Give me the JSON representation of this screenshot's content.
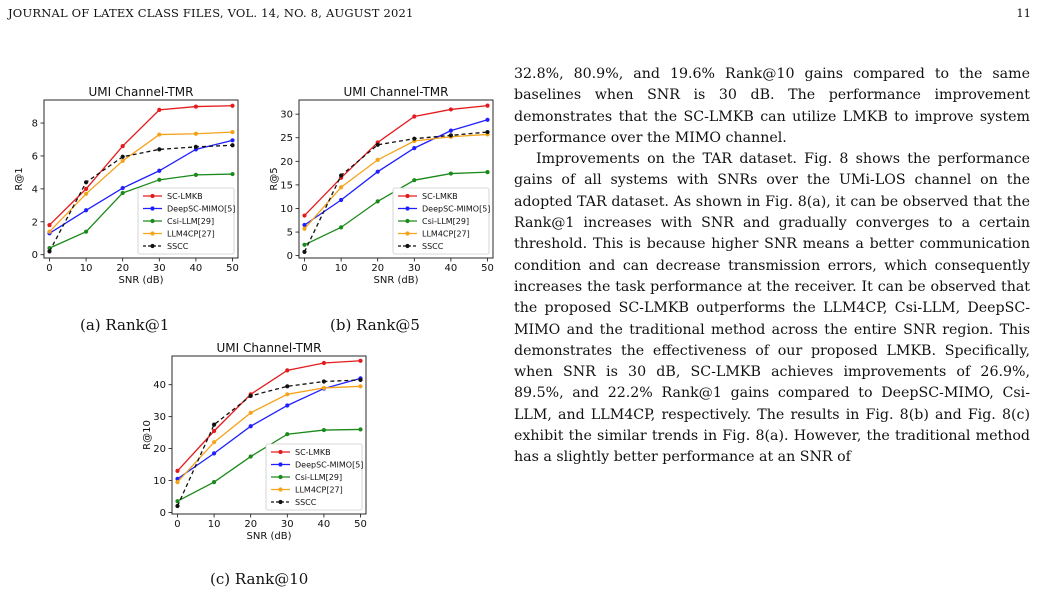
{
  "header": {
    "running_title": "JOURNAL OF LATEX CLASS FILES, VOL. 14, NO. 8, AUGUST 2021",
    "page_number": "11"
  },
  "figures": {
    "a_caption": "(a) Rank@1",
    "b_caption": "(b) Rank@5",
    "c_caption": "(c) Rank@10"
  },
  "legend_names": [
    "SC-LMKB",
    "DeepSC-MIMO[5]",
    "Csi-LLM[29]",
    "LLM4CP[27]",
    "SSCC"
  ],
  "series_colors": [
    "#e41a1c",
    "#1f1fff",
    "#1a8a1a",
    "#f5a31a",
    "#111111"
  ],
  "chart_data": [
    {
      "type": "line",
      "title": "UMI Channel-TMR",
      "xlabel": "SNR (dB)",
      "ylabel": "R@1",
      "x": [
        0,
        10,
        20,
        30,
        40,
        50
      ],
      "xlim": [
        -1.5,
        51.5
      ],
      "ylim": [
        -0.2,
        9.4
      ],
      "yticks": [
        0,
        2,
        4,
        6,
        8
      ],
      "grid": false,
      "legend": "lower-right",
      "series": [
        {
          "name": "SC-LMKB",
          "values": [
            1.8,
            4.0,
            6.6,
            8.8,
            9.0,
            9.05
          ]
        },
        {
          "name": "DeepSC-MIMO[5]",
          "values": [
            1.3,
            2.7,
            4.05,
            5.1,
            6.4,
            6.95
          ]
        },
        {
          "name": "Csi-LLM[29]",
          "values": [
            0.4,
            1.4,
            3.75,
            4.55,
            4.85,
            4.9
          ]
        },
        {
          "name": "LLM4CP[27]",
          "values": [
            1.4,
            3.7,
            5.7,
            7.3,
            7.35,
            7.45
          ]
        },
        {
          "name": "SSCC",
          "values": [
            0.2,
            4.4,
            5.95,
            6.4,
            6.55,
            6.65
          ]
        }
      ]
    },
    {
      "type": "line",
      "title": "UMI Channel-TMR",
      "xlabel": "SNR (dB)",
      "ylabel": "R@5",
      "x": [
        0,
        10,
        20,
        30,
        40,
        50
      ],
      "xlim": [
        -1.5,
        51.5
      ],
      "ylim": [
        -0.5,
        33
      ],
      "yticks": [
        0,
        5,
        10,
        15,
        20,
        25,
        30
      ],
      "grid": false,
      "legend": "lower-right",
      "series": [
        {
          "name": "SC-LMKB",
          "values": [
            8.5,
            16.5,
            24.0,
            29.5,
            31.0,
            31.8
          ]
        },
        {
          "name": "DeepSC-MIMO[5]",
          "values": [
            6.5,
            11.8,
            17.8,
            22.8,
            26.5,
            28.8
          ]
        },
        {
          "name": "Csi-LLM[29]",
          "values": [
            2.3,
            6.0,
            11.5,
            16.0,
            17.4,
            17.7
          ]
        },
        {
          "name": "LLM4CP[27]",
          "values": [
            5.7,
            14.5,
            20.3,
            24.3,
            25.2,
            25.7
          ]
        },
        {
          "name": "SSCC",
          "values": [
            0.8,
            17.0,
            23.5,
            24.8,
            25.5,
            26.2
          ]
        }
      ]
    },
    {
      "type": "line",
      "title": "UMI Channel-TMR",
      "xlabel": "SNR (dB)",
      "ylabel": "R@10",
      "x": [
        0,
        10,
        20,
        30,
        40,
        50
      ],
      "xlim": [
        -1.5,
        51.5
      ],
      "ylim": [
        -0.5,
        49
      ],
      "yticks": [
        0,
        10,
        20,
        30,
        40
      ],
      "grid": false,
      "legend": "lower-right",
      "series": [
        {
          "name": "SC-LMKB",
          "values": [
            13.0,
            25.5,
            37.0,
            44.5,
            46.8,
            47.5
          ]
        },
        {
          "name": "DeepSC-MIMO[5]",
          "values": [
            10.5,
            18.5,
            27.0,
            33.5,
            38.8,
            42.0
          ]
        },
        {
          "name": "Csi-LLM[29]",
          "values": [
            3.5,
            9.5,
            17.5,
            24.5,
            25.8,
            26.0
          ]
        },
        {
          "name": "LLM4CP[27]",
          "values": [
            9.5,
            22.0,
            31.2,
            37.0,
            39.0,
            39.5
          ]
        },
        {
          "name": "SSCC",
          "values": [
            2.0,
            27.5,
            36.5,
            39.5,
            41.0,
            41.5
          ]
        }
      ]
    }
  ],
  "body_text": {
    "p1": "32.8%, 80.9%, and 19.6% Rank@10 gains compared to the same baselines when SNR is 30 dB. The performance improvement demonstrates that the SC-LMKB can utilize LMKB to improve system performance over the MIMO channel.",
    "p2": "Improvements on the TAR dataset. Fig. 8 shows the performance gains of all systems with SNRs over the UMi-LOS channel on the adopted TAR dataset. As shown in Fig. 8(a), it can be observed that the Rank@1 increases with SNR and gradually converges to a certain threshold. This is because higher SNR means a better communication condition and can decrease transmission errors, which consequently increases the task performance at the receiver. It can be observed that the proposed SC-LMKB outperforms the LLM4CP, Csi-LLM, DeepSC-MIMO and the traditional method across the entire SNR region. This demonstrates the effectiveness of our proposed LMKB. Specifically, when SNR is 30 dB, SC-LMKB achieves improvements of 26.9%, 89.5%, and 22.2% Rank@1 gains compared to DeepSC-MIMO, Csi-LLM, and LLM4CP, respectively. The results in Fig. 8(b) and Fig. 8(c) exhibit the similar trends in Fig. 8(a). However, the traditional method has a slightly better performance at an SNR of"
  }
}
